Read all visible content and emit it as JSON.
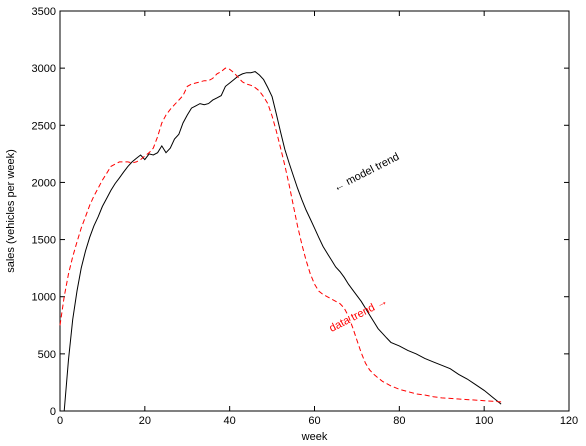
{
  "chart_data": {
    "type": "line",
    "xlabel": "week",
    "ylabel": "sales (vehicles per week)",
    "xlim": [
      0,
      120
    ],
    "ylim": [
      0,
      3500
    ],
    "xticks": [
      0,
      20,
      40,
      60,
      80,
      100,
      120
    ],
    "yticks": [
      0,
      500,
      1000,
      1500,
      2000,
      2500,
      3000,
      3500
    ],
    "grid": false,
    "series": [
      {
        "name": "model trend",
        "color": "#000000",
        "style": "solid",
        "x": [
          1,
          2,
          3,
          4,
          5,
          6,
          7,
          8,
          9,
          10,
          11,
          12,
          13,
          14,
          15,
          16,
          17,
          18,
          19,
          20,
          21,
          22,
          23,
          24,
          25,
          26,
          27,
          28,
          29,
          30,
          31,
          32,
          33,
          34,
          35,
          36,
          37,
          38,
          39,
          40,
          41,
          42,
          43,
          44,
          45,
          46,
          47,
          48,
          49,
          50,
          51,
          52,
          53,
          54,
          55,
          56,
          57,
          58,
          59,
          60,
          61,
          62,
          63,
          64,
          65,
          66,
          67,
          68,
          69,
          70,
          71,
          72,
          73,
          74,
          75,
          76,
          77,
          78,
          80,
          82,
          84,
          86,
          88,
          90,
          92,
          94,
          96,
          98,
          100,
          102,
          104
        ],
        "y": [
          0,
          450,
          800,
          1050,
          1250,
          1400,
          1520,
          1620,
          1700,
          1790,
          1860,
          1930,
          1990,
          2040,
          2090,
          2140,
          2180,
          2210,
          2240,
          2200,
          2250,
          2240,
          2260,
          2320,
          2260,
          2300,
          2380,
          2420,
          2520,
          2590,
          2650,
          2670,
          2690,
          2680,
          2690,
          2720,
          2740,
          2760,
          2840,
          2870,
          2900,
          2930,
          2950,
          2960,
          2960,
          2970,
          2940,
          2900,
          2830,
          2750,
          2600,
          2440,
          2290,
          2170,
          2060,
          1950,
          1850,
          1760,
          1680,
          1600,
          1520,
          1440,
          1380,
          1320,
          1260,
          1220,
          1170,
          1110,
          1060,
          1010,
          960,
          900,
          840,
          780,
          720,
          680,
          640,
          600,
          570,
          530,
          500,
          460,
          430,
          400,
          370,
          320,
          280,
          230,
          180,
          120,
          60
        ]
      },
      {
        "name": "data trend",
        "color": "#ff0000",
        "style": "dashed",
        "x": [
          0,
          1,
          2,
          3,
          4,
          5,
          6,
          7,
          8,
          9,
          10,
          11,
          12,
          13,
          14,
          15,
          16,
          17,
          18,
          19,
          20,
          21,
          22,
          23,
          24,
          25,
          26,
          27,
          28,
          29,
          30,
          31,
          32,
          33,
          34,
          35,
          36,
          37,
          38,
          39,
          40,
          41,
          42,
          43,
          44,
          45,
          46,
          47,
          48,
          49,
          50,
          51,
          52,
          53,
          54,
          55,
          56,
          57,
          58,
          59,
          60,
          61,
          62,
          63,
          64,
          65,
          66,
          67,
          68,
          69,
          70,
          71,
          72,
          73,
          74,
          75,
          76,
          78,
          80,
          82,
          84,
          86,
          88,
          90,
          92,
          94,
          96,
          98,
          100,
          102,
          104
        ],
        "y": [
          750,
          1000,
          1200,
          1350,
          1480,
          1600,
          1700,
          1800,
          1880,
          1950,
          2020,
          2080,
          2140,
          2160,
          2180,
          2180,
          2180,
          2170,
          2180,
          2200,
          2230,
          2260,
          2300,
          2400,
          2520,
          2590,
          2640,
          2680,
          2720,
          2760,
          2840,
          2860,
          2870,
          2880,
          2890,
          2890,
          2910,
          2950,
          2970,
          3000,
          2990,
          2960,
          2920,
          2880,
          2860,
          2850,
          2830,
          2800,
          2750,
          2690,
          2580,
          2450,
          2300,
          2150,
          1980,
          1800,
          1620,
          1460,
          1320,
          1200,
          1110,
          1050,
          1020,
          1000,
          980,
          960,
          940,
          900,
          830,
          730,
          620,
          510,
          420,
          360,
          320,
          290,
          260,
          220,
          190,
          170,
          150,
          140,
          125,
          115,
          110,
          105,
          100,
          95,
          90,
          85,
          80
        ]
      }
    ],
    "annotations": [
      {
        "text": "← model trend",
        "x": 65,
        "y": 1920,
        "rotate": -27,
        "color": "#000000"
      },
      {
        "text": "data trend →",
        "x": 64,
        "y": 690,
        "rotate": -27,
        "color": "#ff0000"
      }
    ]
  }
}
